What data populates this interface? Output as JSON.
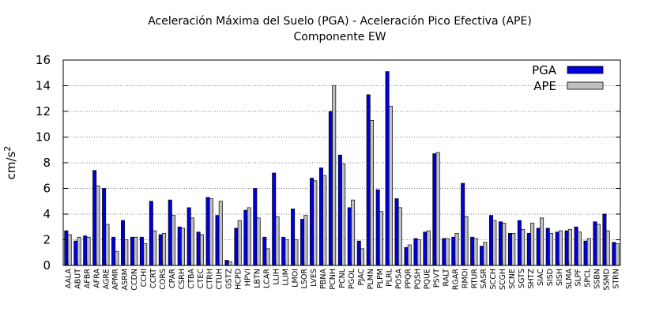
{
  "chart_data": {
    "type": "bar",
    "title_line1": "Aceleración Máxima del Suelo (PGA) -   Aceleración Pico Efectiva (APE)",
    "title_line2": "Componente EW",
    "ylabel": "cm/s",
    "ylabel_sup": "2",
    "xlabel": "",
    "ylim": [
      0,
      16
    ],
    "yticks": [
      0,
      2,
      4,
      6,
      8,
      10,
      12,
      14,
      16
    ],
    "grid": true,
    "legend_position": "top-right",
    "categories": [
      "AALA",
      "ABUT",
      "AFBR",
      "AFRA",
      "AGRE",
      "APMR",
      "ASRM",
      "CCDN",
      "CCHI",
      "CCRT",
      "CORS",
      "CPAR",
      "CSRH",
      "CTBA",
      "CTEC",
      "CTRH",
      "CTUH",
      "GSTZ",
      "HCPD",
      "HPVI",
      "LBTN",
      "LCAR",
      "LLIH",
      "LLIM",
      "LMOI",
      "LSOR",
      "LVES",
      "PBNA",
      "PCNH",
      "PCNL",
      "PGOL",
      "PJAC",
      "PLMN",
      "PLPM",
      "PLRL",
      "POSA",
      "PPQR",
      "PQSH",
      "PQUE",
      "PSVT",
      "RALT",
      "RGAR",
      "RMOI",
      "RTUR",
      "SASR",
      "SCCH",
      "SCGH",
      "SCNE",
      "SGTS",
      "SHTZ",
      "SIAC",
      "SISD",
      "SISH",
      "SLMA",
      "SLPF",
      "SPCL",
      "SSBN",
      "SSMD",
      "STRN"
    ],
    "series": [
      {
        "name": "PGA",
        "color": "#0000dd",
        "values": [
          2.7,
          1.9,
          2.3,
          7.4,
          6.0,
          2.2,
          3.5,
          2.2,
          2.2,
          5.0,
          2.4,
          5.1,
          3.0,
          4.5,
          2.6,
          5.3,
          3.9,
          0.4,
          2.9,
          4.3,
          6.0,
          2.2,
          7.2,
          2.2,
          4.4,
          3.6,
          6.8,
          7.6,
          12.0,
          8.6,
          4.5,
          1.9,
          13.3,
          5.9,
          15.1,
          5.2,
          1.4,
          2.1,
          2.6,
          8.7,
          2.1,
          2.2,
          6.4,
          2.2,
          1.5,
          3.9,
          3.4,
          2.5,
          3.5,
          2.5,
          2.9,
          2.9,
          2.6,
          2.7,
          3.0,
          1.9,
          3.4,
          4.0,
          1.8
        ]
      },
      {
        "name": "APE",
        "color": "#c0c0c0",
        "values": [
          2.4,
          2.2,
          2.2,
          6.2,
          3.2,
          1.1,
          2.0,
          2.2,
          1.7,
          2.7,
          2.5,
          3.9,
          2.9,
          3.7,
          2.4,
          5.2,
          5.0,
          0.3,
          3.5,
          4.5,
          3.7,
          1.3,
          3.8,
          2.0,
          2.0,
          3.9,
          6.6,
          7.0,
          14.0,
          7.9,
          5.1,
          1.3,
          11.3,
          4.2,
          12.4,
          4.5,
          1.6,
          2.0,
          2.7,
          8.8,
          2.1,
          2.5,
          3.8,
          2.1,
          1.8,
          3.5,
          3.3,
          2.5,
          2.8,
          3.3,
          3.7,
          2.5,
          2.7,
          2.8,
          2.6,
          2.1,
          3.2,
          2.7,
          1.7
        ]
      }
    ]
  }
}
